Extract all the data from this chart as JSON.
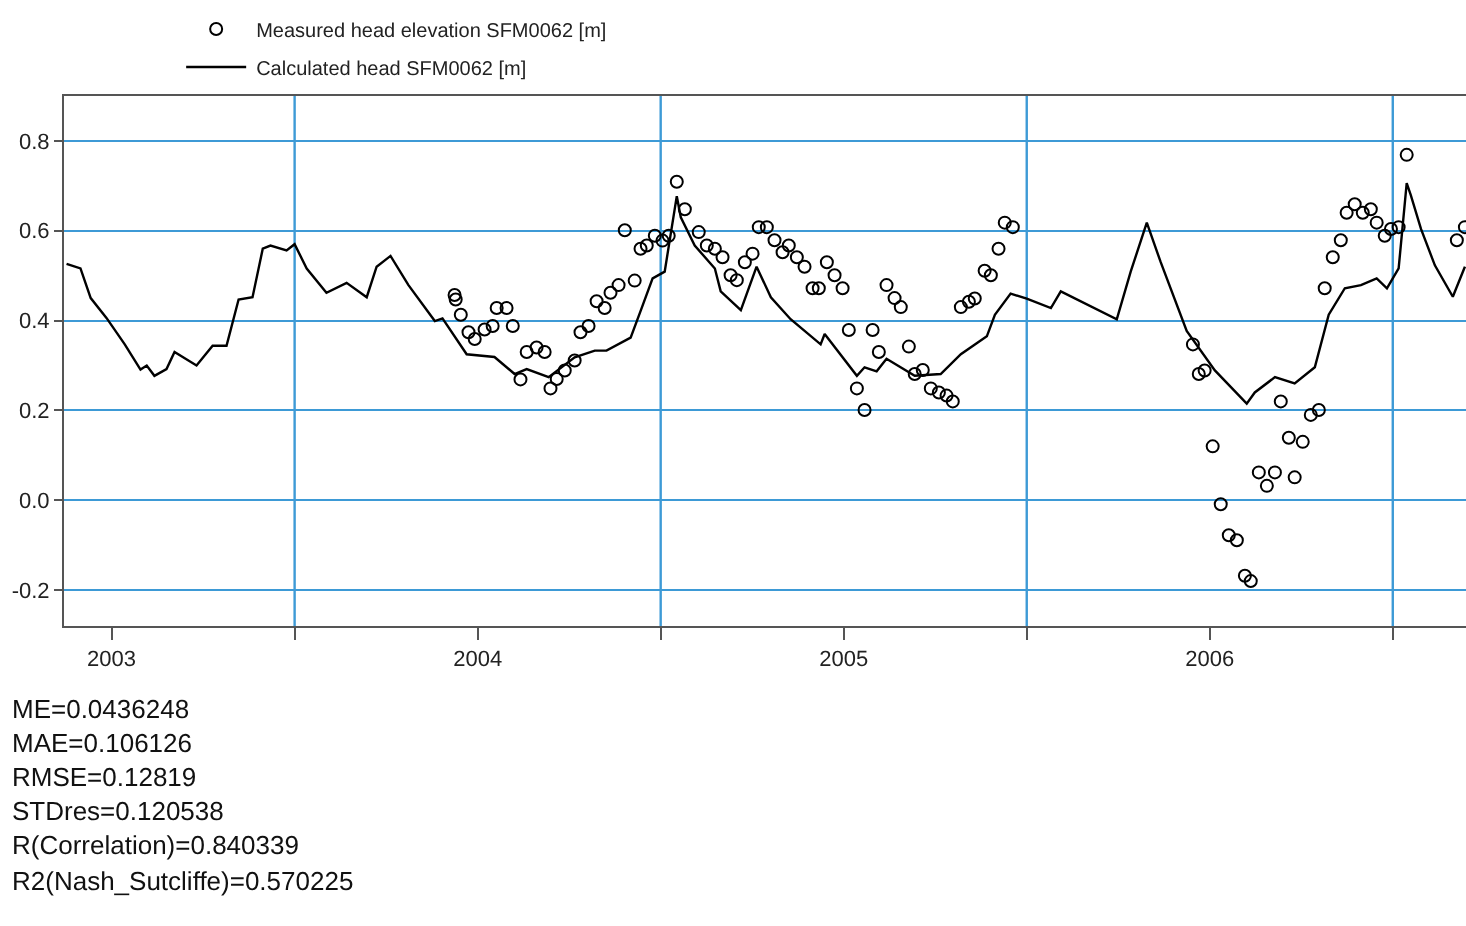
{
  "chart_data": {
    "type": "line",
    "series": [
      {
        "name": "Measured head elevation SFM0062 [m]",
        "type": "scatter",
        "marker": "circle",
        "color": "#000000",
        "x": [
          2004.437,
          2004.44,
          2004.454,
          2004.475,
          2004.492,
          2004.519,
          2004.541,
          2004.552,
          2004.579,
          2004.596,
          2004.617,
          2004.634,
          2004.661,
          2004.683,
          2004.699,
          2004.716,
          2004.738,
          2004.765,
          2004.781,
          2004.803,
          2004.825,
          2004.847,
          2004.863,
          2004.885,
          2004.902,
          2004.929,
          2004.945,
          2004.962,
          2004.984,
          2005.005,
          2005.022,
          2005.044,
          2005.066,
          2005.104,
          2005.126,
          2005.148,
          2005.169,
          2005.191,
          2005.208,
          2005.23,
          2005.251,
          2005.268,
          2005.29,
          2005.311,
          2005.333,
          2005.35,
          2005.372,
          2005.393,
          2005.415,
          2005.432,
          2005.454,
          2005.475,
          2005.497,
          2005.514,
          2005.536,
          2005.557,
          2005.579,
          2005.596,
          2005.617,
          2005.639,
          2005.656,
          2005.678,
          2005.694,
          2005.716,
          2005.738,
          2005.76,
          2005.781,
          2005.798,
          2005.82,
          2005.842,
          2005.858,
          2005.885,
          2005.902,
          2005.923,
          2005.94,
          2005.962,
          2006.454,
          2006.47,
          2006.486,
          2006.508,
          2006.53,
          2006.552,
          2006.574,
          2006.596,
          2006.612,
          2006.634,
          2006.656,
          2006.678,
          2006.694,
          2006.716,
          2006.732,
          2006.754,
          2006.776,
          2006.798,
          2006.814,
          2006.836,
          2006.858,
          2006.874,
          2006.896,
          2006.918,
          2006.94,
          2006.956,
          2006.978,
          2006.995,
          2007.016,
          2007.038,
          2007.175,
          2007.197
        ],
        "values": [
          0.457,
          0.447,
          0.413,
          0.374,
          0.359,
          0.38,
          0.388,
          0.428,
          0.428,
          0.388,
          0.269,
          0.33,
          0.34,
          0.33,
          0.249,
          0.27,
          0.289,
          0.311,
          0.374,
          0.388,
          0.443,
          0.428,
          0.462,
          0.479,
          0.601,
          0.489,
          0.56,
          0.567,
          0.589,
          0.578,
          0.589,
          0.709,
          0.648,
          0.597,
          0.567,
          0.56,
          0.541,
          0.501,
          0.49,
          0.53,
          0.549,
          0.608,
          0.608,
          0.579,
          0.552,
          0.567,
          0.541,
          0.52,
          0.472,
          0.472,
          0.53,
          0.501,
          0.472,
          0.379,
          0.249,
          0.201,
          0.379,
          0.33,
          0.479,
          0.45,
          0.43,
          0.342,
          0.281,
          0.29,
          0.249,
          0.24,
          0.233,
          0.22,
          0.43,
          0.442,
          0.449,
          0.511,
          0.501,
          0.56,
          0.618,
          0.608,
          0.347,
          0.281,
          0.289,
          0.12,
          -0.009,
          -0.078,
          -0.089,
          -0.168,
          -0.18,
          0.062,
          0.032,
          0.062,
          0.22,
          0.139,
          0.051,
          0.13,
          0.19,
          0.201,
          0.472,
          0.541,
          0.579,
          0.64,
          0.659,
          0.64,
          0.648,
          0.618,
          0.589,
          0.604,
          0.608,
          0.769,
          0.579,
          0.608
        ]
      },
      {
        "name": "Calculated head SFM0062 [m]",
        "line_style": "solid",
        "color": "#000000",
        "x": [
          2003.377,
          2003.415,
          2003.443,
          2003.486,
          2003.536,
          2003.579,
          2003.596,
          2003.617,
          2003.65,
          2003.672,
          2003.732,
          2003.776,
          2003.814,
          2003.847,
          2003.885,
          2003.913,
          2003.934,
          2003.978,
          2004.0,
          2004.033,
          2004.087,
          2004.142,
          2004.197,
          2004.224,
          2004.262,
          2004.311,
          2004.383,
          2004.404,
          2004.47,
          2004.546,
          2004.601,
          2004.634,
          2004.694,
          2004.765,
          2004.82,
          2004.852,
          2004.918,
          2004.945,
          2004.978,
          2005.011,
          2005.044,
          2005.055,
          2005.093,
          2005.148,
          2005.164,
          2005.219,
          2005.262,
          2005.301,
          2005.355,
          2005.437,
          2005.448,
          2005.536,
          2005.557,
          2005.59,
          2005.617,
          2005.694,
          2005.765,
          2005.82,
          2005.891,
          2005.913,
          2005.956,
          2006.0,
          2006.066,
          2006.093,
          2006.246,
          2006.284,
          2006.328,
          2006.366,
          2006.437,
          2006.514,
          2006.601,
          2006.623,
          2006.678,
          2006.732,
          2006.787,
          2006.825,
          2006.869,
          2006.913,
          2006.956,
          2006.984,
          2007.016,
          2007.038,
          2007.049,
          2007.077,
          2007.115,
          2007.164,
          2007.197
        ],
        "values": [
          0.526,
          0.516,
          0.45,
          0.406,
          0.347,
          0.291,
          0.3,
          0.277,
          0.292,
          0.33,
          0.3,
          0.344,
          0.344,
          0.447,
          0.452,
          0.56,
          0.567,
          0.556,
          0.57,
          0.516,
          0.462,
          0.484,
          0.452,
          0.52,
          0.544,
          0.479,
          0.399,
          0.405,
          0.325,
          0.319,
          0.281,
          0.292,
          0.274,
          0.318,
          0.333,
          0.333,
          0.362,
          0.421,
          0.494,
          0.509,
          0.677,
          0.63,
          0.567,
          0.516,
          0.465,
          0.423,
          0.52,
          0.452,
          0.403,
          0.347,
          0.37,
          0.277,
          0.296,
          0.287,
          0.315,
          0.277,
          0.281,
          0.325,
          0.365,
          0.413,
          0.46,
          0.449,
          0.428,
          0.465,
          0.403,
          0.509,
          0.618,
          0.53,
          0.377,
          0.289,
          0.215,
          0.24,
          0.274,
          0.26,
          0.296,
          0.413,
          0.472,
          0.479,
          0.494,
          0.472,
          0.516,
          0.706,
          0.68,
          0.604,
          0.523,
          0.453,
          0.52
        ]
      }
    ],
    "xlim": [
      2003.37,
      2007.2
    ],
    "xticks": [
      {
        "value": 2003.5,
        "label": "2003"
      },
      {
        "value": 2004,
        "label": null
      },
      {
        "value": 2004.5,
        "label": "2004"
      },
      {
        "value": 2005,
        "label": null
      },
      {
        "value": 2005.5,
        "label": "2005"
      },
      {
        "value": 2006,
        "label": null
      },
      {
        "value": 2006.5,
        "label": "2006"
      },
      {
        "value": 2007,
        "label": null
      }
    ],
    "ylim": [
      -0.28,
      0.9
    ],
    "yticks": [
      -0.2,
      {
        "value": 0,
        "label": "0.0"
      },
      0.2,
      0.4,
      0.6,
      0.8
    ],
    "grid": true,
    "legend": "top left",
    "annotations": [
      "ME=0.0436248",
      "MAE=0.106126",
      "RMSE=0.12819",
      "STDres=0.120538",
      "R(Correlation)=0.840339",
      "R2(Nash_Sutcliffe)=0.570225"
    ]
  }
}
